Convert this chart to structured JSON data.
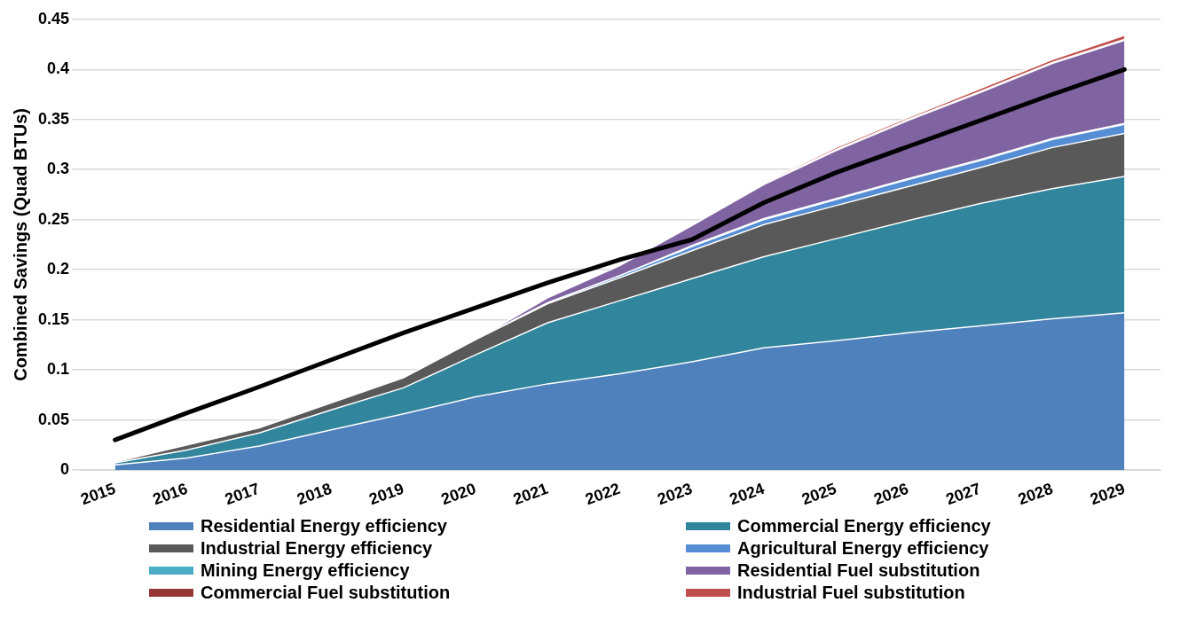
{
  "chart_data": {
    "type": "area",
    "stacked": true,
    "ylabel": "Combined Savings (Quad BTUs)",
    "categories": [
      "2015",
      "2016",
      "2017",
      "2018",
      "2019",
      "2020",
      "2021",
      "2022",
      "2023",
      "2024",
      "2025",
      "2026",
      "2027",
      "2028",
      "2029"
    ],
    "ylim": [
      0,
      0.45
    ],
    "yticks": [
      0,
      0.05,
      0.1,
      0.15,
      0.2,
      0.25,
      0.3,
      0.35,
      0.4,
      0.45
    ],
    "grid": "y",
    "legend": "bottom",
    "series": [
      {
        "name": "Residential Energy efficiency",
        "color": "#4f81bd",
        "values": [
          0.005,
          0.012,
          0.024,
          0.04,
          0.056,
          0.073,
          0.086,
          0.096,
          0.108,
          0.122,
          0.129,
          0.137,
          0.144,
          0.151,
          0.157
        ]
      },
      {
        "name": "Commercial Energy efficiency",
        "color": "#31859c",
        "values": [
          0.002,
          0.008,
          0.013,
          0.02,
          0.026,
          0.042,
          0.061,
          0.073,
          0.083,
          0.091,
          0.102,
          0.112,
          0.122,
          0.13,
          0.136
        ]
      },
      {
        "name": "Industrial Energy efficiency",
        "color": "#595959",
        "values": [
          0.001,
          0.005,
          0.005,
          0.007,
          0.01,
          0.015,
          0.019,
          0.023,
          0.028,
          0.032,
          0.033,
          0.034,
          0.036,
          0.041,
          0.043
        ]
      },
      {
        "name": "Agricultural Energy efficiency",
        "color": "#558ed5",
        "values": [
          0,
          0,
          0,
          0,
          0,
          0,
          0.001,
          0.002,
          0.004,
          0.005,
          0.006,
          0.007,
          0.007,
          0.008,
          0.009
        ]
      },
      {
        "name": "Mining Energy efficiency",
        "color": "#4bacc6",
        "values": [
          0,
          0,
          0,
          0,
          0,
          0,
          0,
          0,
          0.001,
          0.001,
          0.001,
          0.001,
          0.001,
          0.001,
          0.001
        ]
      },
      {
        "name": "Residential Fuel substitution",
        "color": "#8064a2",
        "values": [
          0,
          0,
          0,
          0,
          0,
          0,
          0.005,
          0.01,
          0.02,
          0.034,
          0.048,
          0.058,
          0.067,
          0.075,
          0.083
        ]
      },
      {
        "name": "Commercial Fuel substitution",
        "color": "#953735",
        "values": [
          0,
          0,
          0,
          0,
          0,
          0,
          0,
          0,
          0,
          0.001,
          0.001,
          0.001,
          0.001,
          0.001,
          0.001
        ]
      },
      {
        "name": "Industrial Fuel substitution",
        "color": "#c0504d",
        "values": [
          0,
          0,
          0,
          0,
          0,
          0,
          0,
          0,
          0,
          0.001,
          0.002,
          0.002,
          0.003,
          0.003,
          0.004
        ]
      },
      {
        "type": "line",
        "color": "#000000",
        "values": [
          0.03,
          0.057,
          0.083,
          0.11,
          0.137,
          0.162,
          0.187,
          0.21,
          0.23,
          0.267,
          0.297,
          0.323,
          0.349,
          0.375,
          0.4
        ]
      }
    ]
  }
}
